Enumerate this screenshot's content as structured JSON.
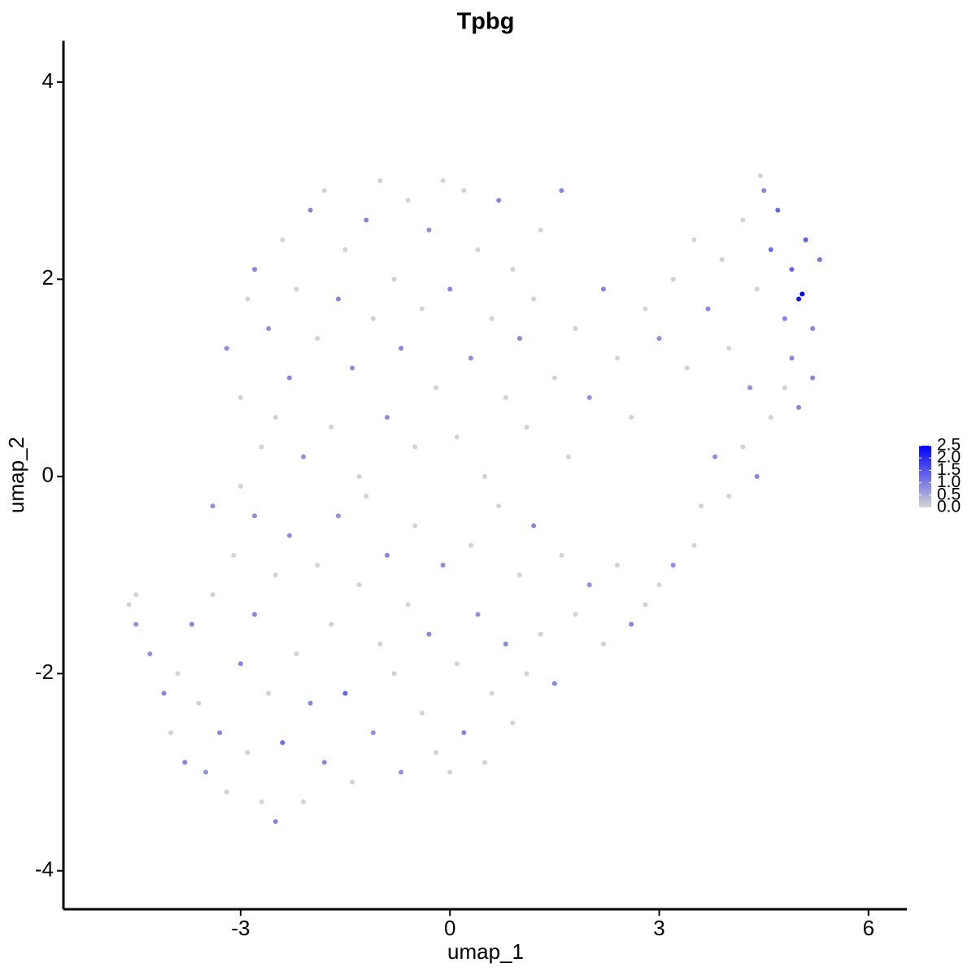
{
  "chart_data": {
    "type": "scatter",
    "title": "Tpbg",
    "xlabel": "umap_1",
    "ylabel": "umap_2",
    "xlim": [
      -5.54,
      6.55
    ],
    "ylim": [
      -4.39,
      4.42
    ],
    "xticks": [
      -3,
      0,
      3,
      6
    ],
    "yticks": [
      -4,
      -2,
      0,
      2,
      4
    ],
    "x": [
      -4.6,
      -4.5,
      -4.5,
      -4.3,
      -4.1,
      -4.0,
      -3.9,
      -3.8,
      -3.7,
      -3.6,
      -3.5,
      -3.4,
      -3.4,
      -3.3,
      -3.2,
      -3.1,
      -3.0,
      -3.0,
      -2.9,
      -2.8,
      -2.8,
      -2.7,
      -2.6,
      -2.5,
      -2.5,
      -2.4,
      -2.3,
      -2.2,
      -2.1,
      -2.0,
      -1.9,
      -1.8,
      -1.7,
      -1.6,
      -1.5,
      -1.4,
      -1.3,
      -1.2,
      -1.1,
      -1.0,
      -0.9,
      -0.8,
      -0.7,
      -0.6,
      -0.5,
      -0.4,
      -0.3,
      -0.2,
      -0.1,
      0.0,
      0.1,
      0.2,
      0.3,
      0.4,
      0.5,
      0.6,
      0.7,
      0.8,
      0.9,
      1.0,
      1.1,
      1.2,
      1.3,
      1.5,
      1.6,
      1.8,
      2.0,
      2.2,
      2.4,
      2.6,
      2.8,
      3.0,
      3.2,
      3.5,
      3.6,
      3.8,
      4.0,
      4.2,
      4.4,
      4.6,
      4.8,
      5.0,
      5.2,
      -3.2,
      -3.0,
      -2.9,
      -2.8,
      -2.7,
      -2.6,
      -2.5,
      -2.4,
      -2.3,
      -2.2,
      -2.1,
      -2.0,
      -1.9,
      -1.8,
      -1.7,
      -1.6,
      -1.5,
      -1.4,
      -1.3,
      -1.2,
      -1.1,
      -1.0,
      -0.9,
      -0.8,
      -0.7,
      -0.6,
      -0.5,
      -0.4,
      -0.3,
      -0.2,
      -0.1,
      0.0,
      0.1,
      0.2,
      0.3,
      0.4,
      0.5,
      0.6,
      0.7,
      0.8,
      0.9,
      1.0,
      1.1,
      1.2,
      1.3,
      1.5,
      1.6,
      1.7,
      1.8,
      2.0,
      2.2,
      2.4,
      2.6,
      2.8,
      3.0,
      3.2,
      3.4,
      3.5,
      3.7,
      3.9,
      4.0,
      4.2,
      4.3,
      4.4,
      4.5,
      4.6,
      4.7,
      4.8,
      4.9,
      5.0,
      5.05,
      5.1,
      5.2,
      5.3,
      4.45,
      4.9
    ],
    "values": [
      -1.3,
      -1.2,
      -1.5,
      -1.8,
      -2.2,
      -2.6,
      -2.0,
      -2.9,
      -1.5,
      -2.3,
      -3.0,
      -0.3,
      -1.2,
      -2.6,
      -3.2,
      -0.8,
      -1.9,
      -0.1,
      -2.8,
      -0.4,
      -1.4,
      -3.3,
      -2.2,
      -1.0,
      -3.5,
      -2.7,
      -0.6,
      -1.8,
      -3.3,
      -2.3,
      -0.9,
      -2.9,
      -1.5,
      -0.4,
      -2.2,
      -3.1,
      -1.1,
      -0.2,
      -2.6,
      -1.7,
      -0.8,
      -2.0,
      -3.0,
      -1.3,
      -0.5,
      -2.4,
      -1.6,
      -2.8,
      -0.9,
      -3.0,
      -1.9,
      -2.6,
      -0.7,
      -1.4,
      -2.9,
      -2.2,
      -0.3,
      -1.7,
      -2.5,
      -1.0,
      -2.0,
      -0.5,
      -1.6,
      -2.1,
      -0.8,
      -1.4,
      -1.1,
      -1.7,
      -0.9,
      -1.5,
      -1.3,
      -1.1,
      -0.9,
      -0.7,
      -0.3,
      0.2,
      -0.2,
      0.3,
      0.0,
      0.6,
      0.9,
      0.7,
      1.0,
      1.3,
      0.8,
      1.8,
      2.1,
      0.3,
      1.5,
      0.6,
      2.4,
      1.0,
      1.9,
      0.2,
      2.7,
      1.4,
      2.9,
      0.5,
      1.8,
      2.3,
      1.1,
      0.0,
      2.6,
      1.6,
      3.0,
      0.6,
      2.0,
      1.3,
      2.8,
      0.3,
      1.7,
      2.5,
      0.9,
      3.0,
      1.9,
      0.4,
      2.9,
      1.2,
      2.3,
      0.0,
      1.6,
      2.8,
      0.8,
      2.1,
      1.4,
      0.5,
      1.8,
      2.5,
      1.0,
      2.9,
      0.2,
      1.5,
      0.8,
      1.9,
      1.2,
      0.6,
      1.7,
      1.4,
      2.0,
      1.1,
      2.4,
      1.7,
      2.2,
      1.3,
      2.6,
      0.9,
      1.9,
      2.9,
      2.3,
      2.7,
      1.6,
      2.1,
      1.8,
      1.85,
      2.4,
      1.5,
      2.2,
      3.05,
      1.2
    ],
    "expression": [
      0,
      0,
      0.8,
      0.8,
      0.9,
      0,
      0,
      0.9,
      0.9,
      0,
      0.8,
      0.8,
      0,
      0.9,
      0,
      0,
      0.9,
      0,
      0,
      0.8,
      0.9,
      0,
      0,
      0,
      0.9,
      1.2,
      0.8,
      0,
      0,
      0.9,
      0,
      0.9,
      0,
      0.8,
      1.3,
      0,
      0,
      0,
      0.8,
      0,
      0.9,
      0,
      0.8,
      0,
      0,
      0,
      0.9,
      0,
      0.8,
      0,
      0,
      0.9,
      0,
      0.8,
      0,
      0,
      0,
      0.9,
      0,
      0,
      0,
      0.9,
      0,
      0.9,
      0,
      0,
      0.8,
      0,
      0,
      0.9,
      0,
      0,
      0.8,
      0,
      0,
      0.8,
      0,
      0,
      0.9,
      0,
      0,
      0.9,
      0.9,
      0.8,
      0,
      0,
      0.9,
      0,
      0.8,
      0,
      0,
      0.9,
      0,
      0.8,
      0.9,
      0,
      0,
      0,
      0.9,
      0,
      0.8,
      0,
      0.9,
      0,
      0,
      0.8,
      0,
      0.9,
      0,
      0,
      0,
      0.8,
      0,
      0,
      0.9,
      0,
      0,
      0.8,
      0,
      0,
      0,
      0.9,
      0,
      0,
      0.9,
      0,
      0,
      0,
      0,
      0.9,
      0,
      0,
      0.8,
      0.9,
      0,
      0,
      0,
      0.8,
      0,
      0,
      0,
      0.9,
      0,
      0,
      0,
      0.8,
      0,
      0.9,
      1.2,
      1.3,
      0.9,
      1.3,
      2.3,
      2.5,
      1.4,
      0.9,
      1.1,
      0,
      0.9
    ],
    "colorbar": {
      "lim": [
        0,
        2.5
      ],
      "low_color": "#d3d3d3",
      "high_color": "#0000ff",
      "ticks": [
        {
          "value": 0,
          "label": "0.0"
        },
        0.5,
        {
          "value": 1,
          "label": "1.0"
        },
        1.5,
        {
          "value": 2,
          "label": "2.0"
        },
        2.5
      ]
    }
  }
}
